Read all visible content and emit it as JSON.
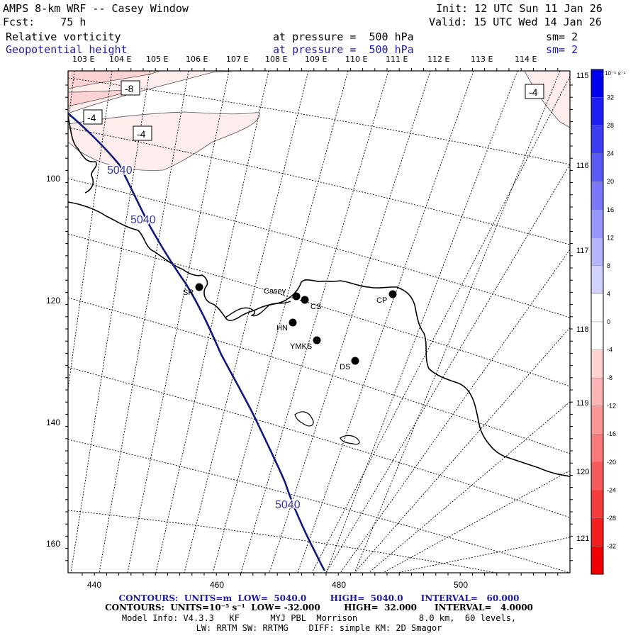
{
  "header": {
    "title": "AMPS 8-km WRF -- Casey Window",
    "init": "Init: 12 UTC Sun 11 Jan 26",
    "fcst": "Fcst:    75 h",
    "valid": "Valid: 15 UTC Wed 14 Jan 26",
    "field1": "Relative vorticity",
    "field1_level": "at pressure =  500 hPa",
    "field1_sm": "sm= 2",
    "field2": "Geopotential height",
    "field2_level": "at pressure =  500 hPa",
    "field2_sm": "sm= 2"
  },
  "top_lon_labels": [
    "103 E",
    "104 E",
    "105 E",
    "106 E",
    "107 E",
    "108 E",
    "109 E",
    "110 E",
    "111 E",
    "112 E",
    "113 E",
    "114 E"
  ],
  "right_lon_labels": [
    "115 E",
    "116 E",
    "117 E",
    "118 E",
    "119 E",
    "120 E",
    "121 E"
  ],
  "x_ticks": [
    "440",
    "460",
    "480",
    "500"
  ],
  "y_ticks": [
    "100",
    "120",
    "140",
    "160"
  ],
  "colorbar": {
    "unit": "10⁻⁵ s⁻¹",
    "labels": [
      "32",
      "28",
      "24",
      "20",
      "16",
      "12",
      "8",
      "4",
      "0",
      "-4",
      "-8",
      "-12",
      "-16",
      "-20",
      "-24",
      "-28",
      "-32"
    ],
    "colors": [
      "#0000f0",
      "#1e1ef3",
      "#3c3cf5",
      "#5a5af7",
      "#7878f9",
      "#9696fb",
      "#b4b4fd",
      "#d2d2fe",
      "#ffffff",
      "#ffffff",
      "#ffd2d2",
      "#fdb4b4",
      "#fb9696",
      "#f97878",
      "#f75a5a",
      "#f53c3c",
      "#f31e1e",
      "#f00000"
    ]
  },
  "contour_labels": {
    "height": [
      "5040",
      "5040",
      "5040"
    ],
    "vorticity": [
      "-8",
      "-4",
      "-4",
      "-4"
    ]
  },
  "stations": [
    {
      "name": "SR"
    },
    {
      "name": "Casey"
    },
    {
      "name": "CS"
    },
    {
      "name": "HN"
    },
    {
      "name": "YMKS"
    },
    {
      "name": "DS"
    },
    {
      "name": "CP"
    }
  ],
  "footer": {
    "line1": "CONTOURS:  UNITS=m  LOW=  5040.0        HIGH=  5040.0      INTERVAL=   60.000",
    "line2": "CONTOURS:  UNITS=10⁻⁵ s⁻¹  LOW= -32.000        HIGH=  32.000      INTERVAL=   4.0000",
    "line3": "Model Info: V4.3.3   KF      MYJ PBL  Morrison            8.0 km,  60 levels,",
    "line4": "LW: RRTM SW: RRTMG    DIFF: simple KM: 2D Smagor"
  },
  "colors": {
    "height_contour": "#0f1a7a",
    "height_label": "#3a3a9a",
    "coast": "#000000"
  }
}
